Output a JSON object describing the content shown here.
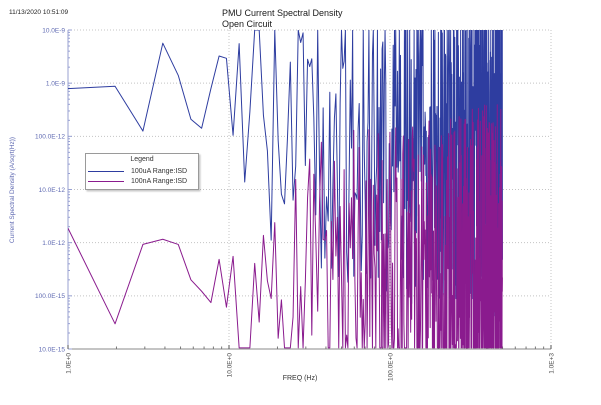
{
  "page": {
    "timestamp": "11/13/2020 10:51:09"
  },
  "chart_data": {
    "type": "line",
    "title_lines": [
      "PMU Current Spectral Density",
      "Open Circuit"
    ],
    "xlabel": "FREQ (Hz)",
    "ylabel": "Current Spectral Density (A/sqrt(Hz))",
    "x_scale": "log",
    "y_scale": "log",
    "x_range": [
      1,
      1000
    ],
    "y_range": [
      1e-14,
      1e-08
    ],
    "grid": "dotted",
    "grid_color": "#c4c4c4",
    "axis_left_color": "#98a1d2",
    "axis_bottom_color": "#8a8a8a",
    "y_tick_label_color": "#5f6ab2",
    "x_tick_label_color": "#4d4d4d",
    "x_ticks": [
      {
        "label": "1.0E+0",
        "value": 1
      },
      {
        "label": "10.0E+0",
        "value": 10
      },
      {
        "label": "100.0E+0",
        "value": 100
      },
      {
        "label": "1.0E+3",
        "value": 1000
      }
    ],
    "y_ticks": [
      {
        "label": "10.0E-9",
        "value": 1e-08
      },
      {
        "label": "1.0E-9",
        "value": 1e-09
      },
      {
        "label": "100.0E-12",
        "value": 1e-10
      },
      {
        "label": "10.0E-12",
        "value": 1e-11
      },
      {
        "label": "1.0E-12",
        "value": 1e-12
      },
      {
        "label": "100.0E-15",
        "value": 1e-13
      },
      {
        "label": "10.0E-15",
        "value": 1e-14
      }
    ],
    "legend_title": "Legend",
    "series": [
      {
        "name": "100uA Range:ISD",
        "color": "#2e3da0",
        "seed": 7,
        "bins": {
          "start": 1,
          "end": 500,
          "step": 0.96
        },
        "envelope_points": [
          [
            1,
            1.35e-09
          ],
          [
            1.9,
            1.05e-09
          ],
          [
            2.7,
            4.5e-10
          ],
          [
            4.6,
            1e-09
          ],
          [
            5.7,
            4.4e-10
          ],
          [
            7.4,
            3e-10
          ],
          [
            9.2,
            4.3e-10
          ],
          [
            10.6,
            2.3e-10
          ],
          [
            12.2,
            6e-10
          ],
          [
            15,
            2.4e-10
          ],
          [
            20,
            2.1e-10
          ],
          [
            30,
            1.7e-10
          ],
          [
            50,
            1.3e-10
          ],
          [
            80,
            1.1e-10
          ],
          [
            150,
            9e-11
          ],
          [
            300,
            7.5e-11
          ],
          [
            500,
            7e-11
          ]
        ],
        "noise_spread_decades": [
          [
            1,
            0.02
          ],
          [
            11,
            0.03
          ],
          [
            13,
            0.42
          ],
          [
            40,
            0.45
          ],
          [
            100,
            0.5
          ],
          [
            500,
            0.52
          ]
        ],
        "dip_probability": 0.06,
        "dip_extra_decades": 0.6,
        "spikes": []
      },
      {
        "name": "100nA Range:ISD",
        "color": "#8a1b8e",
        "seed": 13,
        "bins": {
          "start": 1,
          "end": 500,
          "step": 0.96
        },
        "envelope_points": [
          [
            1,
            1.7e-12
          ],
          [
            1.9,
            7.1e-13
          ],
          [
            2.8,
            1.05e-13
          ],
          [
            3.7,
            5.7e-13
          ],
          [
            6.6,
            5.7e-13
          ],
          [
            7.6,
            1.35e-13
          ],
          [
            9,
            4.2e-13
          ],
          [
            11,
            2.6e-13
          ],
          [
            14,
            3.3e-13
          ],
          [
            17,
            1.5e-13
          ],
          [
            20,
            2.6e-13
          ],
          [
            30,
            2.2e-13
          ],
          [
            45,
            1.8e-13
          ],
          [
            58,
            2e-13
          ],
          [
            80,
            1.7e-13
          ],
          [
            150,
            1.8e-13
          ],
          [
            300,
            2.2e-13
          ],
          [
            500,
            2.8e-13
          ]
        ],
        "noise_spread_decades": [
          [
            1,
            0.02
          ],
          [
            9.5,
            0.03
          ],
          [
            12,
            0.33
          ],
          [
            30,
            0.42
          ],
          [
            100,
            0.48
          ],
          [
            500,
            0.52
          ]
        ],
        "dip_probability": 0.06,
        "dip_extra_decades": 0.7,
        "spikes": [
          [
            57,
            8e-13
          ],
          [
            58,
            7e-12
          ],
          [
            59,
            5e-13
          ]
        ]
      }
    ]
  }
}
